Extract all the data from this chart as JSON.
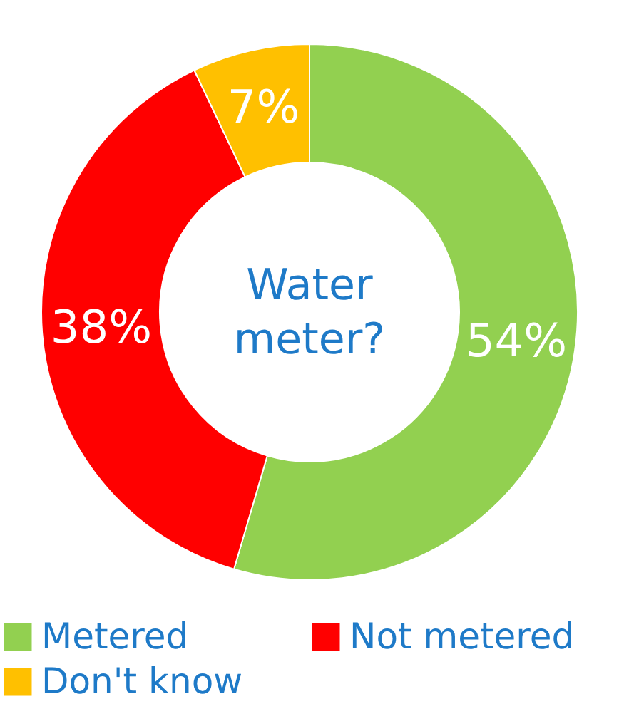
{
  "chart_data": {
    "type": "donut",
    "title": "Water meter?",
    "categories": [
      "Metered",
      "Not metered",
      "Don't know"
    ],
    "values": [
      54,
      38,
      7
    ],
    "colors": [
      "#92d050",
      "#ff0000",
      "#ffc000"
    ],
    "value_labels": [
      "54%",
      "38%",
      "7%"
    ],
    "legend": "bottom"
  }
}
